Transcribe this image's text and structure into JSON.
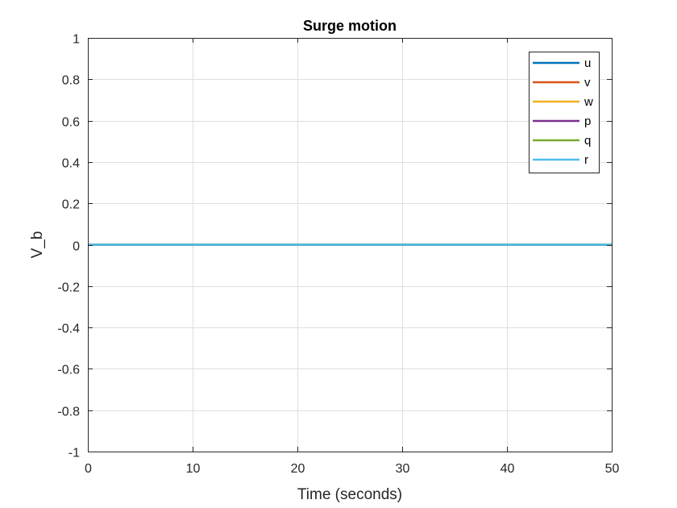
{
  "chart_data": {
    "type": "line",
    "title": "Surge motion",
    "xlabel": "Time (seconds)",
    "ylabel": "V_b",
    "xlim": [
      0,
      50
    ],
    "ylim": [
      -1,
      1
    ],
    "xticks": [
      "0",
      "10",
      "20",
      "30",
      "40",
      "50"
    ],
    "yticks": [
      "1",
      "0.8",
      "0.6",
      "0.4",
      "0.2",
      "0",
      "-0.2",
      "-0.4",
      "-0.6",
      "-0.8",
      "-1"
    ],
    "grid": true,
    "legend_position": "top-right",
    "x": [
      0,
      50
    ],
    "series": [
      {
        "name": "u",
        "color": "#0072BD",
        "values": [
          0,
          0
        ]
      },
      {
        "name": "v",
        "color": "#D95319",
        "values": [
          0,
          0
        ]
      },
      {
        "name": "w",
        "color": "#EDB120",
        "values": [
          0,
          0
        ]
      },
      {
        "name": "p",
        "color": "#7E2F8E",
        "values": [
          0,
          0
        ]
      },
      {
        "name": "q",
        "color": "#77AC30",
        "values": [
          0,
          0
        ]
      },
      {
        "name": "r",
        "color": "#4DBEEE",
        "values": [
          0,
          0
        ]
      }
    ]
  }
}
